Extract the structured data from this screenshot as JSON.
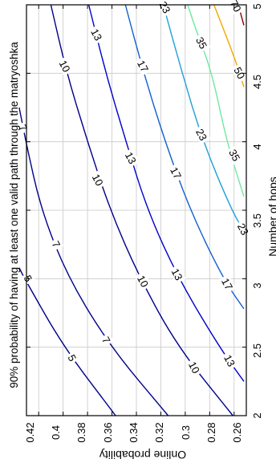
{
  "chart_data": {
    "type": "contour",
    "title": "90% probability of having at least one valid path through the matryoshka",
    "xlabel": "Number of hops",
    "ylabel": "Online probability",
    "xlim": [
      2,
      5
    ],
    "ylim": [
      0.25,
      0.43
    ],
    "x_ticks": [
      "2",
      "2.5",
      "3",
      "3.5",
      "4",
      "4.5",
      "5"
    ],
    "y_ticks": [
      "0.26",
      "0.28",
      "0.3",
      "0.32",
      "0.34",
      "0.36",
      "0.38",
      "0.4",
      "0.42"
    ],
    "grid": true,
    "contour_levels": [
      {
        "level": "5",
        "color": "#00008b",
        "points": [
          [
            2.0,
            0.357
          ],
          [
            2.5,
            0.3995
          ],
          [
            3.0,
            0.4315
          ],
          [
            3.08,
            0.436
          ]
        ],
        "labels": [
          [
            2.42,
            0.393
          ],
          [
            3.0,
            0.429
          ]
        ]
      },
      {
        "level": "7",
        "color": "#00008b",
        "points": [
          [
            2.0,
            0.314
          ],
          [
            2.5,
            0.361
          ],
          [
            3.0,
            0.3955
          ],
          [
            3.5,
            0.418
          ],
          [
            4.0,
            0.4305
          ],
          [
            4.25,
            0.436
          ]
        ],
        "labels": [
          [
            2.55,
            0.365
          ],
          [
            3.25,
            0.406
          ],
          [
            4.1,
            0.433
          ]
        ]
      },
      {
        "level": "10",
        "color": "#00008b",
        "points": [
          [
            2.0,
            0.261
          ],
          [
            2.5,
            0.306
          ],
          [
            3.0,
            0.337
          ],
          [
            3.5,
            0.3615
          ],
          [
            4.0,
            0.38
          ],
          [
            4.5,
            0.397
          ],
          [
            5.0,
            0.41
          ]
        ],
        "labels": [
          [
            2.35,
            0.293
          ],
          [
            2.98,
            0.335
          ],
          [
            3.72,
            0.372
          ],
          [
            4.55,
            0.399
          ]
        ]
      },
      {
        "level": "13",
        "color": "#0000cd",
        "points": [
          [
            2.25,
            0.252
          ],
          [
            2.5,
            0.272
          ],
          [
            3.0,
            0.3055
          ],
          [
            3.5,
            0.331
          ],
          [
            4.0,
            0.3485
          ],
          [
            4.5,
            0.365
          ],
          [
            5.0,
            0.379
          ]
        ],
        "labels": [
          [
            2.4,
            0.264
          ],
          [
            3.03,
            0.307
          ],
          [
            3.88,
            0.345
          ],
          [
            4.78,
            0.373
          ]
        ]
      },
      {
        "level": "17",
        "color": "#1060d0",
        "points": [
          [
            2.78,
            0.252
          ],
          [
            3.0,
            0.269
          ],
          [
            3.5,
            0.296
          ],
          [
            4.0,
            0.3165
          ],
          [
            4.5,
            0.334
          ],
          [
            5.0,
            0.349
          ]
        ],
        "labels": [
          [
            2.96,
            0.266
          ],
          [
            3.77,
            0.308
          ],
          [
            4.55,
            0.335
          ]
        ]
      },
      {
        "level": "23",
        "color": "#1ea0d8",
        "points": [
          [
            3.35,
            0.252
          ],
          [
            3.5,
            0.262
          ],
          [
            4.0,
            0.2855
          ],
          [
            4.5,
            0.3025
          ],
          [
            5.0,
            0.318
          ]
        ],
        "labels": [
          [
            3.36,
            0.253
          ],
          [
            4.05,
            0.287
          ],
          [
            4.98,
            0.317
          ]
        ]
      },
      {
        "level": "35",
        "color": "#6ee8a0",
        "points": [
          [
            3.6,
            0.252
          ],
          [
            4.0,
            0.266
          ],
          [
            4.5,
            0.278
          ],
          [
            4.8,
            0.2905
          ],
          [
            5.0,
            0.298
          ]
        ],
        "labels": [
          [
            3.9,
            0.26
          ],
          [
            4.72,
            0.287
          ]
        ]
      },
      {
        "level": "50",
        "color": "#f0a800",
        "points": [
          [
            4.4,
            0.252
          ],
          [
            4.6,
            0.259
          ],
          [
            5.0,
            0.2765
          ]
        ],
        "labels": [
          [
            4.5,
            0.256
          ]
        ]
      },
      {
        "level": "70",
        "color": "#8b0000",
        "points": [
          [
            4.85,
            0.252
          ],
          [
            5.0,
            0.2565
          ]
        ],
        "labels": [
          [
            4.99,
            0.259
          ]
        ]
      }
    ]
  }
}
